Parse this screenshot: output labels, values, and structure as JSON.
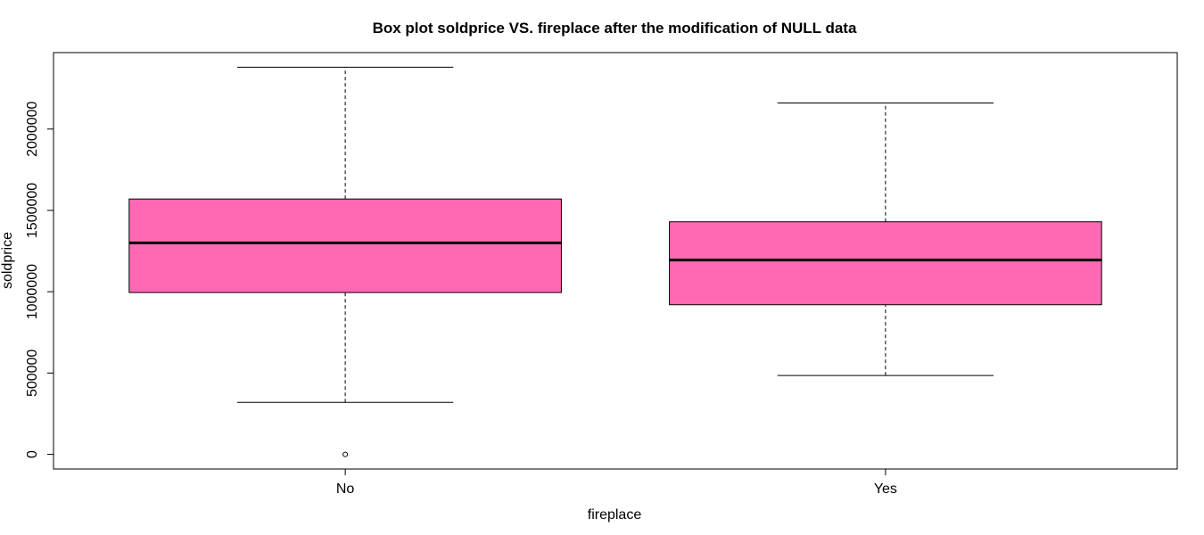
{
  "chart_data": {
    "type": "box",
    "title": "Box plot soldprice VS. fireplace after the modification of NULL data",
    "xlabel": "fireplace",
    "ylabel": "soldprice",
    "categories": [
      "No",
      "Yes"
    ],
    "boxes": [
      {
        "category": "No",
        "whisker_low": 320000,
        "q1": 995000,
        "median": 1300000,
        "q3": 1570000,
        "whisker_high": 2380000,
        "outliers": [
          0
        ]
      },
      {
        "category": "Yes",
        "whisker_low": 485000,
        "q1": 920000,
        "median": 1195000,
        "q3": 1430000,
        "whisker_high": 2160000,
        "outliers": []
      }
    ],
    "y_ticks": [
      0,
      500000,
      1000000,
      1500000,
      2000000
    ],
    "y_tick_labels": [
      "0",
      "500000",
      "1000000",
      "1500000",
      "2000000"
    ],
    "ylim": [
      -90000,
      2470000
    ],
    "box_fill": "#ff69b4",
    "line_color": "#000000",
    "grid": false,
    "legend": "none"
  }
}
